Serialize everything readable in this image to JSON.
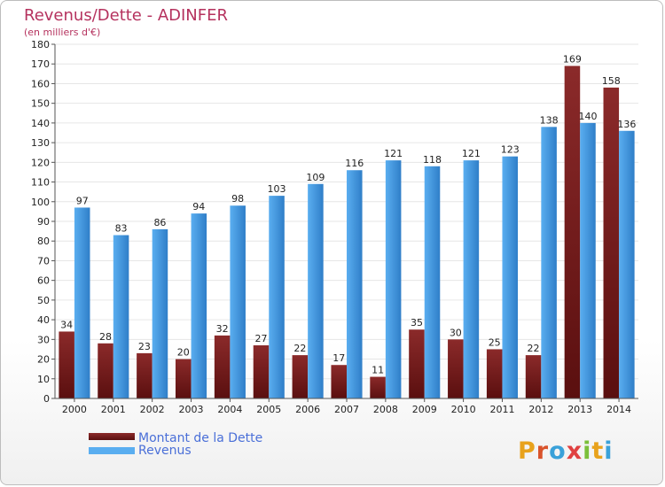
{
  "header": {
    "title": "Revenus/Dette - ADINFER",
    "subtitle": "(en milliers d'€)"
  },
  "logo": {
    "text": "Proxiti"
  },
  "colors": {
    "dette_top": "#8b2a2a",
    "dette_bottom": "#5a0f0f",
    "revenus_top": "#5aaef0",
    "revenus_bottom": "#2f7ec8",
    "title": "#b5325e",
    "legend_text": "#4a6fd8",
    "grid": "#e6e6e6"
  },
  "chart_data": {
    "type": "bar",
    "title": "Revenus/Dette - ADINFER",
    "subtitle": "(en milliers d'€)",
    "categories": [
      "2000",
      "2001",
      "2002",
      "2003",
      "2004",
      "2005",
      "2006",
      "2007",
      "2008",
      "2009",
      "2010",
      "2011",
      "2012",
      "2013",
      "2014"
    ],
    "series": [
      {
        "name": "Montant de la Dette",
        "values": [
          34,
          28,
          23,
          20,
          32,
          27,
          22,
          17,
          11,
          35,
          30,
          25,
          22,
          169,
          158
        ]
      },
      {
        "name": "Revenus",
        "values": [
          97,
          83,
          86,
          94,
          98,
          103,
          109,
          116,
          121,
          118,
          121,
          123,
          138,
          140,
          136
        ]
      }
    ],
    "ylim": [
      0,
      180
    ],
    "yticks": [
      0,
      10,
      20,
      30,
      40,
      50,
      60,
      70,
      80,
      90,
      100,
      110,
      120,
      130,
      140,
      150,
      160,
      170,
      180
    ],
    "grid": true,
    "legend": "bottom-left"
  }
}
